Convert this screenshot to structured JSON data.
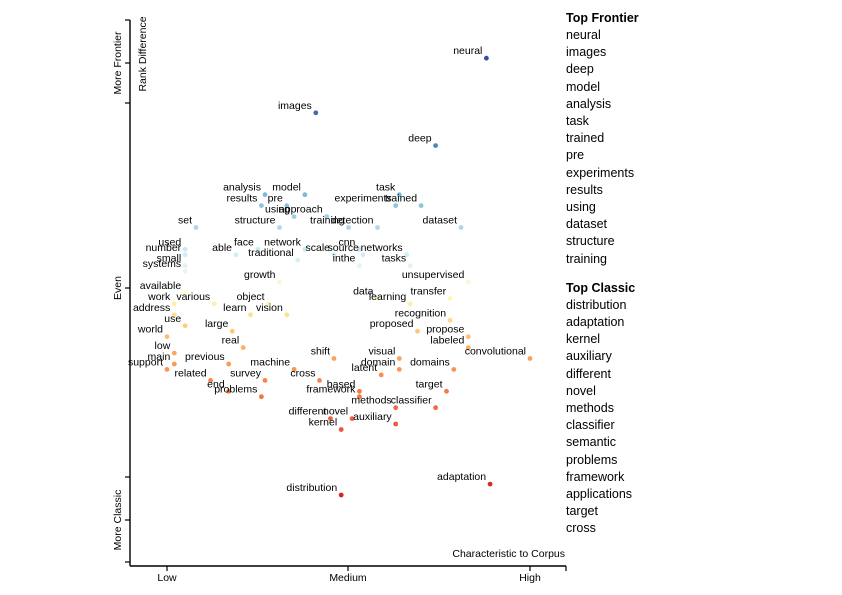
{
  "chart_data": {
    "type": "scatter",
    "y_axis": {
      "title": "Rank Difference",
      "top_label": "More Frontier",
      "middle_label": "Even",
      "bottom_label": "More Classic"
    },
    "x_axis": {
      "title": "Characteristic to Corpus",
      "tick_labels": [
        "Low",
        "Medium",
        "High"
      ]
    },
    "color_scale": {
      "frontier": "#313695",
      "even": "#ffffbf",
      "classic": "#a50026"
    },
    "labeled_points": [
      {
        "term": "neural",
        "x": 0.88,
        "y": 0.93
      },
      {
        "term": "images",
        "x": 0.41,
        "y": 0.83
      },
      {
        "term": "deep",
        "x": 0.74,
        "y": 0.77
      },
      {
        "term": "analysis",
        "x": 0.27,
        "y": 0.68
      },
      {
        "term": "model",
        "x": 0.38,
        "y": 0.68
      },
      {
        "term": "results",
        "x": 0.26,
        "y": 0.66
      },
      {
        "term": "pre",
        "x": 0.33,
        "y": 0.66
      },
      {
        "term": "task",
        "x": 0.64,
        "y": 0.68
      },
      {
        "term": "trained",
        "x": 0.7,
        "y": 0.66
      },
      {
        "term": "experiments",
        "x": 0.63,
        "y": 0.66
      },
      {
        "term": "using",
        "x": 0.35,
        "y": 0.64
      },
      {
        "term": "approach",
        "x": 0.44,
        "y": 0.64
      },
      {
        "term": "set",
        "x": 0.08,
        "y": 0.62
      },
      {
        "term": "structure",
        "x": 0.31,
        "y": 0.62
      },
      {
        "term": "training",
        "x": 0.5,
        "y": 0.62
      },
      {
        "term": "detection",
        "x": 0.58,
        "y": 0.62
      },
      {
        "term": "dataset",
        "x": 0.81,
        "y": 0.62
      },
      {
        "term": "used",
        "x": 0.05,
        "y": 0.58
      },
      {
        "term": "face",
        "x": 0.25,
        "y": 0.58
      },
      {
        "term": "network",
        "x": 0.38,
        "y": 0.58
      },
      {
        "term": "cnn",
        "x": 0.53,
        "y": 0.58
      },
      {
        "term": "number",
        "x": 0.05,
        "y": 0.57
      },
      {
        "term": "able",
        "x": 0.19,
        "y": 0.57
      },
      {
        "term": "scale",
        "x": 0.46,
        "y": 0.57
      },
      {
        "term": "source",
        "x": 0.54,
        "y": 0.57
      },
      {
        "term": "networks",
        "x": 0.66,
        "y": 0.57
      },
      {
        "term": "traditional",
        "x": 0.36,
        "y": 0.56
      },
      {
        "term": "small",
        "x": 0.05,
        "y": 0.55
      },
      {
        "term": "inthe",
        "x": 0.53,
        "y": 0.55
      },
      {
        "term": "tasks",
        "x": 0.67,
        "y": 0.55
      },
      {
        "term": "systems",
        "x": 0.05,
        "y": 0.54
      },
      {
        "term": "growth",
        "x": 0.31,
        "y": 0.52
      },
      {
        "term": "unsupervised",
        "x": 0.83,
        "y": 0.52
      },
      {
        "term": "available",
        "x": 0.05,
        "y": 0.5
      },
      {
        "term": "data",
        "x": 0.58,
        "y": 0.49
      },
      {
        "term": "transfer",
        "x": 0.78,
        "y": 0.49
      },
      {
        "term": "work",
        "x": 0.02,
        "y": 0.48
      },
      {
        "term": "various",
        "x": 0.13,
        "y": 0.48
      },
      {
        "term": "object",
        "x": 0.28,
        "y": 0.48
      },
      {
        "term": "learning",
        "x": 0.67,
        "y": 0.48
      },
      {
        "term": "learn",
        "x": 0.23,
        "y": 0.46
      },
      {
        "term": "vision",
        "x": 0.33,
        "y": 0.46
      },
      {
        "term": "address",
        "x": 0.02,
        "y": 0.46
      },
      {
        "term": "recognition",
        "x": 0.78,
        "y": 0.45
      },
      {
        "term": "use",
        "x": 0.05,
        "y": 0.44
      },
      {
        "term": "large",
        "x": 0.18,
        "y": 0.43
      },
      {
        "term": "proposed",
        "x": 0.69,
        "y": 0.43
      },
      {
        "term": "world",
        "x": 0.0,
        "y": 0.42
      },
      {
        "term": "propose",
        "x": 0.83,
        "y": 0.42
      },
      {
        "term": "labeled",
        "x": 0.83,
        "y": 0.4
      },
      {
        "term": "real",
        "x": 0.21,
        "y": 0.4
      },
      {
        "term": "low",
        "x": 0.02,
        "y": 0.39
      },
      {
        "term": "convolutional",
        "x": 1.0,
        "y": 0.38
      },
      {
        "term": "shift",
        "x": 0.46,
        "y": 0.38
      },
      {
        "term": "visual",
        "x": 0.64,
        "y": 0.38
      },
      {
        "term": "main",
        "x": 0.02,
        "y": 0.37
      },
      {
        "term": "previous",
        "x": 0.17,
        "y": 0.37
      },
      {
        "term": "support",
        "x": 0.0,
        "y": 0.36
      },
      {
        "term": "machine",
        "x": 0.35,
        "y": 0.36
      },
      {
        "term": "domain",
        "x": 0.64,
        "y": 0.36
      },
      {
        "term": "domains",
        "x": 0.79,
        "y": 0.36
      },
      {
        "term": "latent",
        "x": 0.59,
        "y": 0.35
      },
      {
        "term": "related",
        "x": 0.12,
        "y": 0.34
      },
      {
        "term": "survey",
        "x": 0.27,
        "y": 0.34
      },
      {
        "term": "cross",
        "x": 0.42,
        "y": 0.34
      },
      {
        "term": "end",
        "x": 0.17,
        "y": 0.32
      },
      {
        "term": "based",
        "x": 0.53,
        "y": 0.32
      },
      {
        "term": "target",
        "x": 0.77,
        "y": 0.32
      },
      {
        "term": "problems",
        "x": 0.26,
        "y": 0.31
      },
      {
        "term": "framework",
        "x": 0.53,
        "y": 0.31
      },
      {
        "term": "methods",
        "x": 0.63,
        "y": 0.29
      },
      {
        "term": "classifier",
        "x": 0.74,
        "y": 0.29
      },
      {
        "term": "different",
        "x": 0.45,
        "y": 0.27
      },
      {
        "term": "novel",
        "x": 0.51,
        "y": 0.27
      },
      {
        "term": "auxiliary",
        "x": 0.63,
        "y": 0.26
      },
      {
        "term": "kernel",
        "x": 0.48,
        "y": 0.25
      },
      {
        "term": "adaptation",
        "x": 0.89,
        "y": 0.15
      },
      {
        "term": "distribution",
        "x": 0.48,
        "y": 0.13
      }
    ]
  },
  "sidebar": {
    "frontier_title": "Top Frontier",
    "frontier_terms": [
      "neural",
      "images",
      "deep",
      "model",
      "analysis",
      "task",
      "trained",
      "pre",
      "experiments",
      "results",
      "using",
      "dataset",
      "structure",
      "training"
    ],
    "classic_title": "Top Classic",
    "classic_terms": [
      "distribution",
      "adaptation",
      "kernel",
      "auxiliary",
      "different",
      "novel",
      "methods",
      "classifier",
      "semantic",
      "problems",
      "framework",
      "applications",
      "target",
      "cross"
    ]
  }
}
